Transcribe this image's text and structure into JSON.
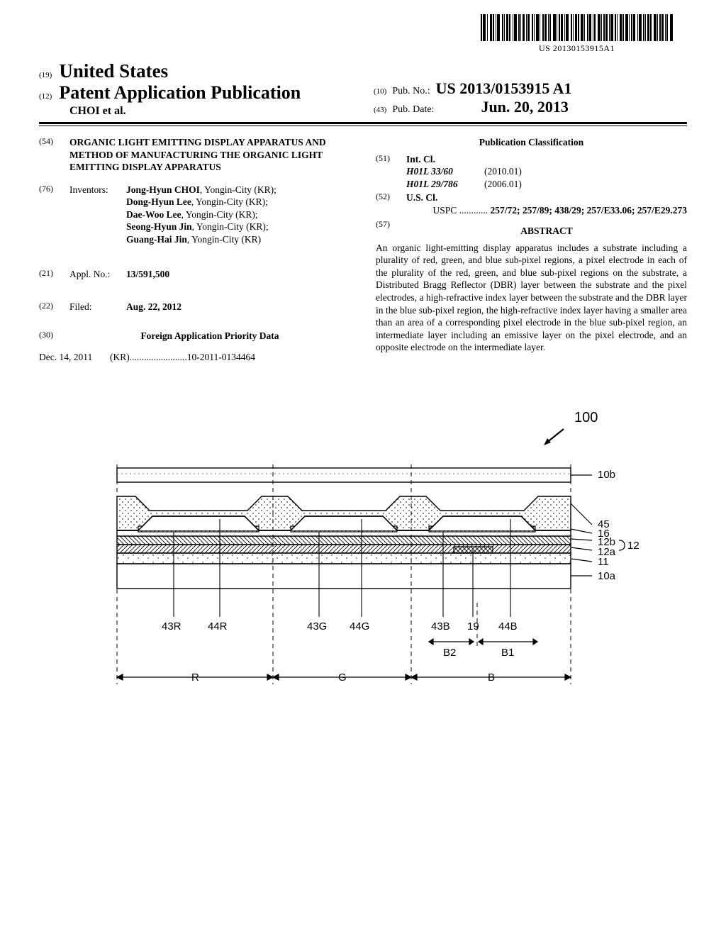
{
  "barcode_text": "US 20130153915A1",
  "header": {
    "code19": "(19)",
    "country": "United States",
    "code12": "(12)",
    "pub_title": "Patent Application Publication",
    "authors": "CHOI et al.",
    "code10": "(10)",
    "pubno_label": "Pub. No.:",
    "pubno": "US 2013/0153915 A1",
    "code43": "(43)",
    "pubdate_label": "Pub. Date:",
    "pubdate": "Jun. 20, 2013"
  },
  "left": {
    "code54": "(54)",
    "title": "ORGANIC LIGHT EMITTING DISPLAY APPARATUS AND METHOD OF MANUFACTURING THE ORGANIC LIGHT EMITTING DISPLAY APPARATUS",
    "code76": "(76)",
    "inventors_label": "Inventors:",
    "inventors": [
      "Jong-Hyun CHOI, Yongin-City (KR);",
      "Dong-Hyun Lee, Yongin-City (KR);",
      "Dae-Woo Lee, Yongin-City (KR);",
      "Seong-Hyun Jin, Yongin-City (KR);",
      "Guang-Hai Jin, Yongin-City (KR)"
    ],
    "code21": "(21)",
    "applno_label": "Appl. No.:",
    "applno": "13/591,500",
    "code22": "(22)",
    "filed_label": "Filed:",
    "filed": "Aug. 22, 2012",
    "code30": "(30)",
    "priority_head": "Foreign Application Priority Data",
    "priority_date": "Dec. 14, 2011",
    "priority_country": "(KR)",
    "priority_dots": " ........................ ",
    "priority_num": "10-2011-0134464"
  },
  "right": {
    "class_head": "Publication Classification",
    "code51": "(51)",
    "intcl_label": "Int. Cl.",
    "intcl": [
      {
        "code": "H01L 33/60",
        "date": "(2010.01)"
      },
      {
        "code": "H01L 29/786",
        "date": "(2006.01)"
      }
    ],
    "code52": "(52)",
    "uscl_label": "U.S. Cl.",
    "uspc_label": "USPC",
    "uspc_dots": " ............ ",
    "uspc": "257/72; 257/89; 438/29; 257/E33.06; 257/E29.273",
    "code57": "(57)",
    "abstract_head": "ABSTRACT",
    "abstract": "An organic light-emitting display apparatus includes a substrate including a plurality of red, green, and blue sub-pixel regions, a pixel electrode in each of the plurality of the red, green, and blue sub-pixel regions on the substrate, a Distributed Bragg Reflector (DBR) layer between the substrate and the pixel electrodes, a high-refractive index layer between the substrate and the DBR layer in the blue sub-pixel region, the high-refractive index layer having a smaller area than an area of a corresponding pixel electrode in the blue sub-pixel region, an intermediate layer including an emissive layer on the pixel electrode, and an opposite electrode on the intermediate layer."
  },
  "figure": {
    "ref100": "100",
    "labels_right": [
      "10b",
      "45",
      "16",
      "12b",
      "12a",
      "11",
      "10a"
    ],
    "bracket12": "12",
    "labels_bottom": [
      "43R",
      "44R",
      "43G",
      "44G",
      "43B",
      "19",
      "44B"
    ],
    "b_labels": [
      "B2",
      "B1"
    ],
    "rgb": [
      "R",
      "G",
      "B"
    ],
    "colors": {
      "stroke": "#000000",
      "bg": "#ffffff",
      "hatch": "#000000"
    },
    "stroke_width": 1.4
  }
}
